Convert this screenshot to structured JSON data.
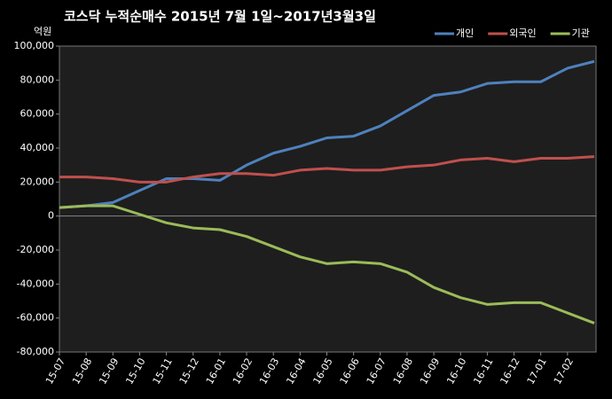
{
  "chart_data": {
    "type": "line",
    "title": "코스닥 누적순매수 2015년 7월 1일~2017년3월3일",
    "y_label": "억원",
    "categories": [
      "15-07",
      "15-08",
      "15-09",
      "15-10",
      "15-11",
      "15-12",
      "16-01",
      "16-02",
      "16-03",
      "16-04",
      "16-05",
      "16-06",
      "16-07",
      "16-08",
      "16-09",
      "16-10",
      "16-11",
      "16-12",
      "17-01",
      "17-02",
      null
    ],
    "series": [
      {
        "name": "개인",
        "color": "#4f81bd",
        "values": [
          5000,
          6000,
          8000,
          15000,
          22000,
          22000,
          21000,
          30000,
          37000,
          41000,
          46000,
          47000,
          53000,
          62000,
          71000,
          73000,
          78000,
          79000,
          79000,
          87000,
          91000
        ]
      },
      {
        "name": "외국인",
        "color": "#c0504d",
        "values": [
          23000,
          23000,
          22000,
          20000,
          20000,
          23000,
          25000,
          25000,
          24000,
          27000,
          28000,
          27000,
          27000,
          29000,
          30000,
          33000,
          34000,
          32000,
          34000,
          34000,
          35000
        ]
      },
      {
        "name": "기관",
        "color": "#9bbb59",
        "values": [
          5000,
          6000,
          6000,
          1000,
          -4000,
          -7000,
          -8000,
          -12000,
          -18000,
          -24000,
          -28000,
          -27000,
          -28000,
          -33000,
          -42000,
          -48000,
          -52000,
          -51000,
          -51000,
          -57000,
          -63000
        ]
      }
    ],
    "ylim": [
      -80000,
      100000
    ],
    "yticks": [
      {
        "value": -80000,
        "label": "-80,000"
      },
      {
        "value": -60000,
        "label": "-60,000"
      },
      {
        "value": -40000,
        "label": "-40,000"
      },
      {
        "value": -20000,
        "label": "-20,000"
      },
      0,
      {
        "value": 20000,
        "label": "20,000"
      },
      {
        "value": 40000,
        "label": "40,000"
      },
      {
        "value": 60000,
        "label": "60,000"
      },
      {
        "value": 80000,
        "label": "80,000"
      },
      {
        "value": 100000,
        "label": "100,000"
      }
    ],
    "legend": "top-right"
  }
}
